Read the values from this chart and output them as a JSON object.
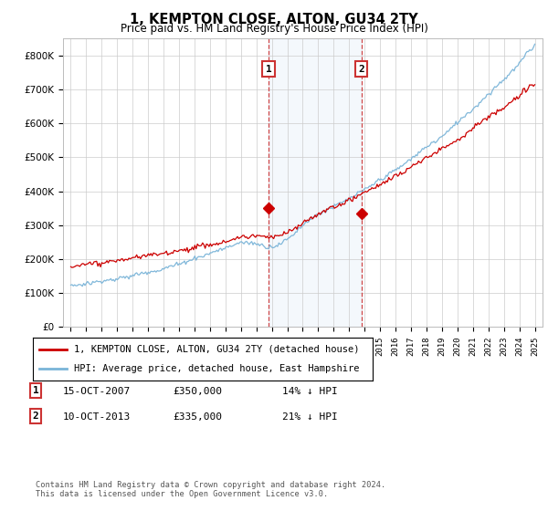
{
  "title": "1, KEMPTON CLOSE, ALTON, GU34 2TY",
  "subtitle": "Price paid vs. HM Land Registry's House Price Index (HPI)",
  "hpi_color": "#7ab4d8",
  "price_color": "#cc0000",
  "sale1_date": "15-OCT-2007",
  "sale1_price": 350000,
  "sale1_label": "1",
  "sale1_year": 2007.79,
  "sale2_date": "10-OCT-2013",
  "sale2_price": 335000,
  "sale2_label": "2",
  "sale2_year": 2013.79,
  "ylim_min": 0,
  "ylim_max": 850000,
  "xlim_min": 1994.5,
  "xlim_max": 2025.5,
  "legend_line1": "1, KEMPTON CLOSE, ALTON, GU34 2TY (detached house)",
  "legend_line2": "HPI: Average price, detached house, East Hampshire",
  "footer": "Contains HM Land Registry data © Crown copyright and database right 2024.\nThis data is licensed under the Open Government Licence v3.0.",
  "label1_box_text": "1",
  "label2_box_text": "2",
  "row1_date": "15-OCT-2007",
  "row1_price": "£350,000",
  "row1_hpi": "14% ↓ HPI",
  "row2_date": "10-OCT-2013",
  "row2_price": "£335,000",
  "row2_hpi": "21% ↓ HPI"
}
